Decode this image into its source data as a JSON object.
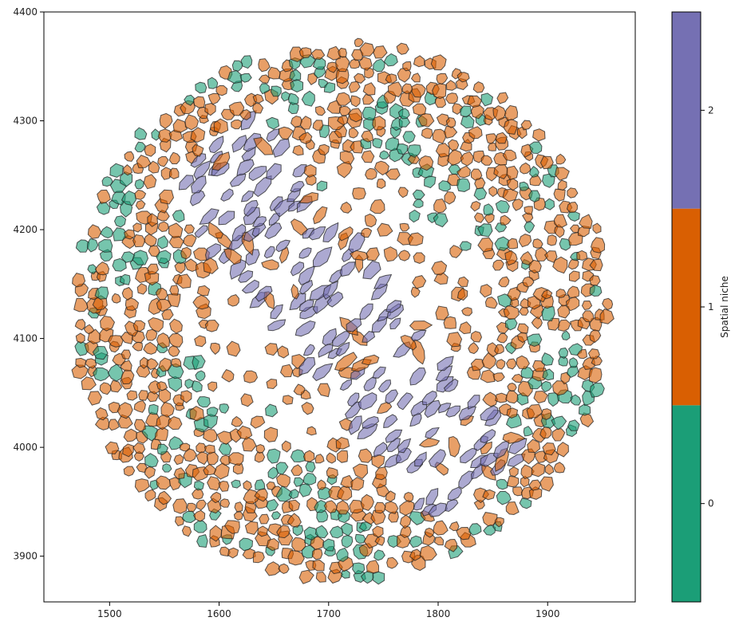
{
  "chart_data": {
    "type": "spatial-polygon-map",
    "title": "",
    "xlabel": "",
    "ylabel": "",
    "xlim": [
      1440,
      1980
    ],
    "ylim": [
      3858,
      4400
    ],
    "x_ticks": [
      1500,
      1600,
      1700,
      1800,
      1900
    ],
    "y_ticks": [
      3900,
      4000,
      4100,
      4200,
      4300,
      4400
    ],
    "grid": false,
    "colorbar": {
      "label": "Spatial niche",
      "categories": [
        "0",
        "1",
        "2"
      ],
      "colors": [
        "#1b9e77",
        "#d95f02",
        "#7570b3"
      ],
      "placement": "right"
    },
    "cell_fill_alpha": 0.6,
    "regions": {
      "tissue_center": [
        1712,
        4125
      ],
      "tissue_radius_x": 245,
      "tissue_radius_y": 248,
      "niche2_band": {
        "x": [
          1590,
          1830
        ],
        "y": [
          3950,
          4310
        ],
        "description_direction": "diagonal band from upper-left to lower-right"
      },
      "niche0_clusters": [
        [
          1490,
          4230
        ],
        [
          1500,
          4170
        ],
        [
          1560,
          4340
        ],
        [
          1600,
          4350
        ],
        [
          1680,
          4330
        ],
        [
          1760,
          4290
        ],
        [
          1800,
          4230
        ],
        [
          1840,
          4210
        ],
        [
          1900,
          4080
        ],
        [
          1925,
          4040
        ],
        [
          1700,
          3920
        ],
        [
          1740,
          3900
        ],
        [
          1660,
          3970
        ],
        [
          1580,
          4050
        ],
        [
          1520,
          4300
        ]
      ]
    }
  }
}
